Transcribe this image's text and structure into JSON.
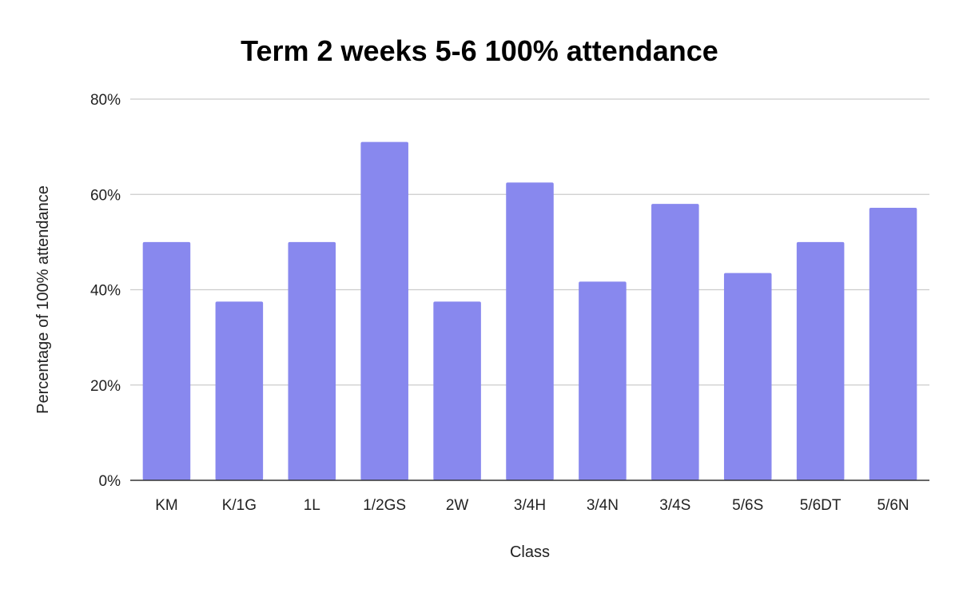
{
  "chart_data": {
    "type": "bar",
    "title": "Term 2 weeks 5-6 100% attendance",
    "xlabel": "Class",
    "ylabel": "Percentage of 100% attendance",
    "categories": [
      "KM",
      "K/1G",
      "1L",
      "1/2GS",
      "2W",
      "3/4H",
      "3/4N",
      "3/4S",
      "5/6S",
      "5/6DT",
      "5/6N"
    ],
    "values": [
      50,
      37.5,
      50,
      71,
      37.5,
      62.5,
      41.7,
      58,
      43.5,
      50,
      57.2
    ],
    "ylim": [
      0,
      80
    ],
    "yticks": [
      0,
      20,
      40,
      60,
      80
    ],
    "ytick_labels": [
      "0%",
      "20%",
      "40%",
      "60%",
      "80%"
    ],
    "grid": true,
    "legend": "none",
    "bar_color": "#8888ee"
  }
}
